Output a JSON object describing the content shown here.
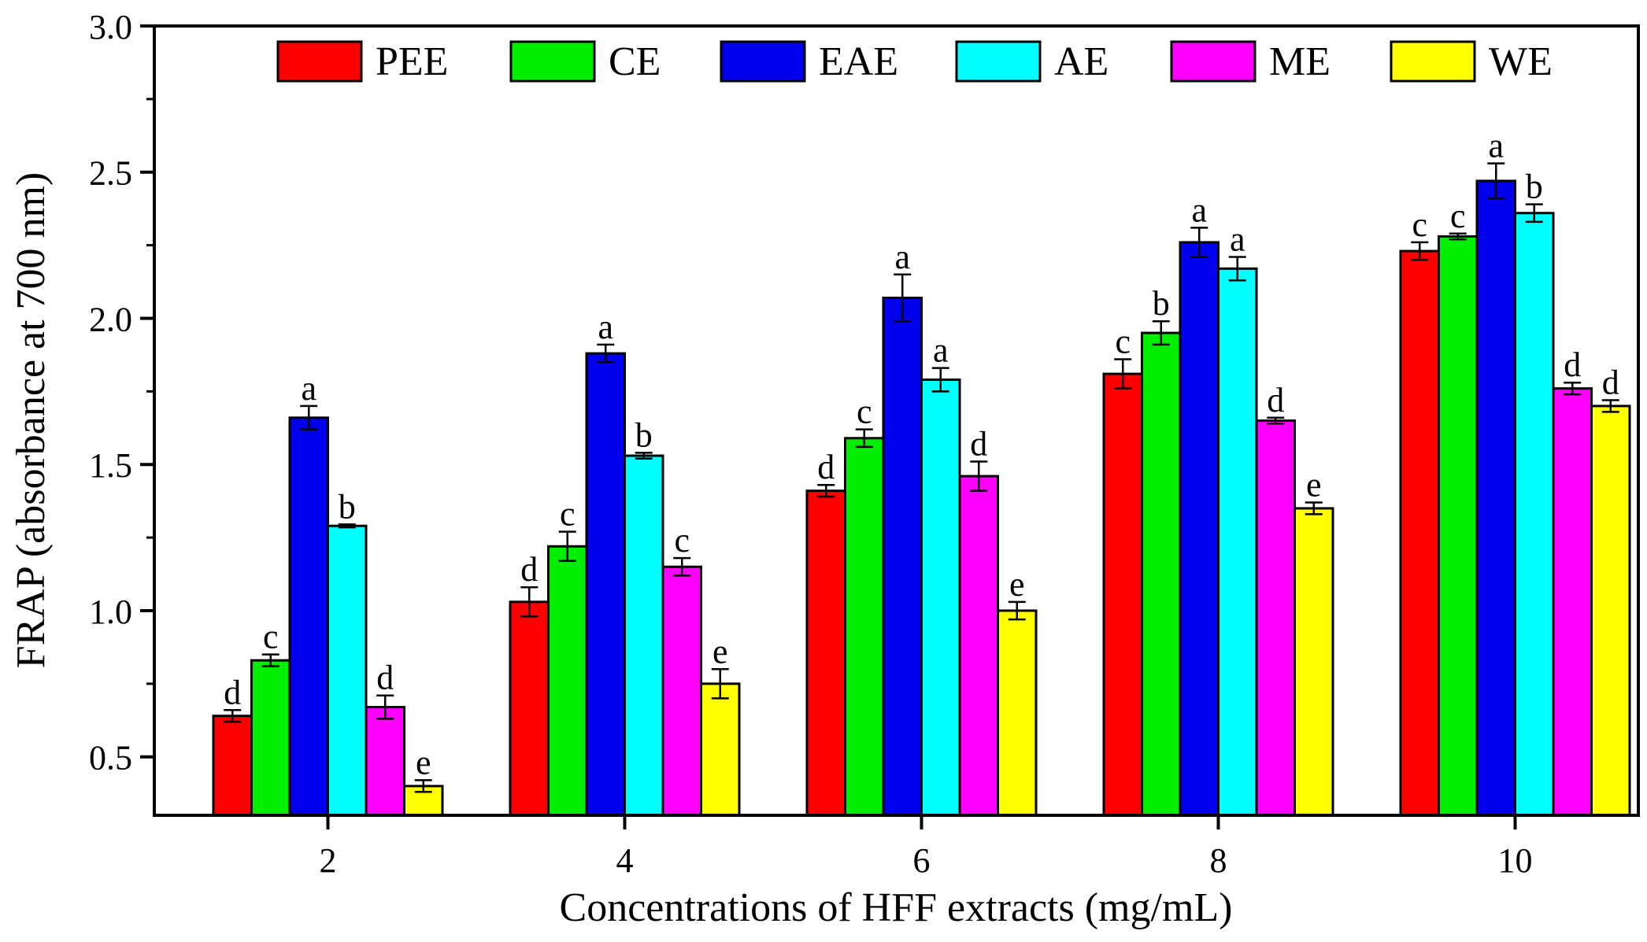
{
  "chart_data": {
    "type": "bar",
    "title": "",
    "xlabel": "Concentrations of HFF extracts (mg/mL)",
    "ylabel": "FRAP (absorbance at 700 nm)",
    "ylim": [
      0.3,
      3.0
    ],
    "yticks": [
      "0.5",
      "1.0",
      "1.5",
      "2.0",
      "2.5",
      "3.0"
    ],
    "ytick_values": [
      0.5,
      1.0,
      1.5,
      2.0,
      2.5,
      3.0
    ],
    "categories": [
      "2",
      "4",
      "6",
      "8",
      "10"
    ],
    "legend_position": "top",
    "series": [
      {
        "name": "PEE",
        "color": "#ff0000",
        "values": [
          0.64,
          1.03,
          1.41,
          1.81,
          2.23
        ],
        "errors": [
          0.02,
          0.05,
          0.02,
          0.05,
          0.03
        ],
        "letters": [
          "d",
          "d",
          "d",
          "c",
          "c"
        ]
      },
      {
        "name": "CE",
        "color": "#00ee00",
        "values": [
          0.83,
          1.22,
          1.59,
          1.95,
          2.28
        ],
        "errors": [
          0.02,
          0.05,
          0.03,
          0.04,
          0.01
        ],
        "letters": [
          "c",
          "c",
          "c",
          "b",
          "c"
        ]
      },
      {
        "name": "EAE",
        "color": "#0000ee",
        "values": [
          1.66,
          1.88,
          2.07,
          2.26,
          2.47
        ],
        "errors": [
          0.04,
          0.03,
          0.08,
          0.05,
          0.06
        ],
        "letters": [
          "a",
          "a",
          "a",
          "a",
          "a"
        ]
      },
      {
        "name": "AE",
        "color": "#00ffff",
        "values": [
          1.29,
          1.53,
          1.79,
          2.17,
          2.36
        ],
        "errors": [
          0.005,
          0.01,
          0.04,
          0.04,
          0.03
        ],
        "letters": [
          "b",
          "b",
          "a",
          "a",
          "b"
        ]
      },
      {
        "name": "ME",
        "color": "#ff00ff",
        "values": [
          0.67,
          1.15,
          1.46,
          1.65,
          1.76
        ],
        "errors": [
          0.04,
          0.03,
          0.05,
          0.01,
          0.02
        ],
        "letters": [
          "d",
          "c",
          "d",
          "d",
          "d"
        ]
      },
      {
        "name": "WE",
        "color": "#ffff00",
        "values": [
          0.4,
          0.75,
          1.0,
          1.35,
          1.7
        ],
        "errors": [
          0.02,
          0.05,
          0.03,
          0.02,
          0.02
        ],
        "letters": [
          "e",
          "e",
          "e",
          "e",
          "d"
        ]
      }
    ]
  }
}
